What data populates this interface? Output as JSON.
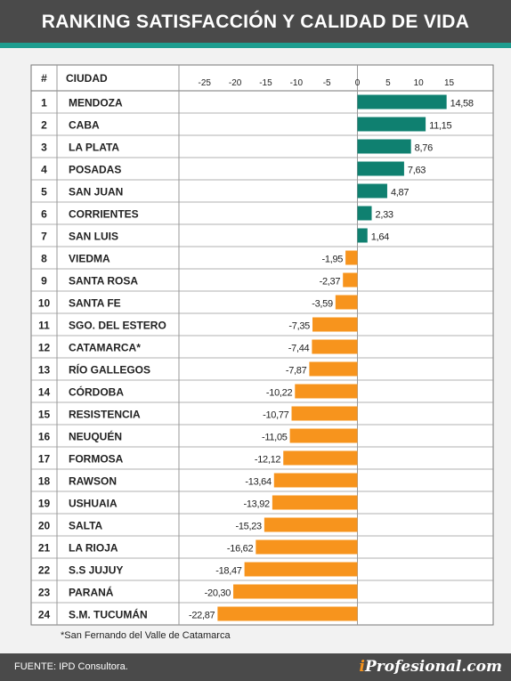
{
  "title": "RANKING SATISFACCIÓN Y CALIDAD DE VIDA",
  "footnote": "*San Fernando del Valle de Catamarca",
  "source": "FUENTE: IPD Consultora.",
  "brand": {
    "prefix": "i",
    "name": "Profesional.com"
  },
  "colors": {
    "positive": "#0f8070",
    "negative": "#f7941d",
    "header": "#4a4a4a",
    "stripe": "#1d9d8f"
  },
  "chart_data": {
    "type": "bar",
    "orientation": "horizontal",
    "columns": [
      "#",
      "CIUDAD"
    ],
    "ticks": [
      -25,
      -20,
      -15,
      -10,
      -5,
      0,
      5,
      10,
      15
    ],
    "xlim": [
      -25,
      15
    ],
    "ranks": [
      "1",
      "2",
      "3",
      "4",
      "5",
      "6",
      "7",
      "8",
      "9",
      "10",
      "11",
      "12",
      "13",
      "14",
      "15",
      "16",
      "17",
      "18",
      "19",
      "20",
      "21",
      "22",
      "23",
      "24"
    ],
    "categories": [
      "MENDOZA",
      "CABA",
      "LA PLATA",
      "POSADAS",
      "SAN JUAN",
      "CORRIENTES",
      "SAN LUIS",
      "VIEDMA",
      "SANTA ROSA",
      "SANTA FE",
      "SGO. DEL ESTERO",
      "CATAMARCA*",
      "RÍO GALLEGOS",
      "CÓRDOBA",
      "RESISTENCIA",
      "NEUQUÉN",
      "FORMOSA",
      "RAWSON",
      "USHUAIA",
      "SALTA",
      "LA RIOJA",
      "S.S JUJUY",
      "PARANÁ",
      "S.M. TUCUMÁN"
    ],
    "values": [
      14.58,
      11.15,
      8.76,
      7.63,
      4.87,
      2.33,
      1.64,
      -1.95,
      -2.37,
      -3.59,
      -7.35,
      -7.44,
      -7.87,
      -10.22,
      -10.77,
      -11.05,
      -12.12,
      -13.64,
      -13.92,
      -15.23,
      -16.62,
      -18.47,
      -20.3,
      -22.87
    ],
    "labels": [
      "14,58",
      "11,15",
      "8,76",
      "7,63",
      "4,87",
      "2,33",
      "1,64",
      "-1,95",
      "-2,37",
      "-3,59",
      "-7,35",
      "-7,44",
      "-7,87",
      "-10,22",
      "-10,77",
      "-11,05",
      "-12,12",
      "-13,64",
      "-13,92",
      "-15,23",
      "-16,62",
      "-18,47",
      "-20,30",
      "-22,87"
    ]
  }
}
